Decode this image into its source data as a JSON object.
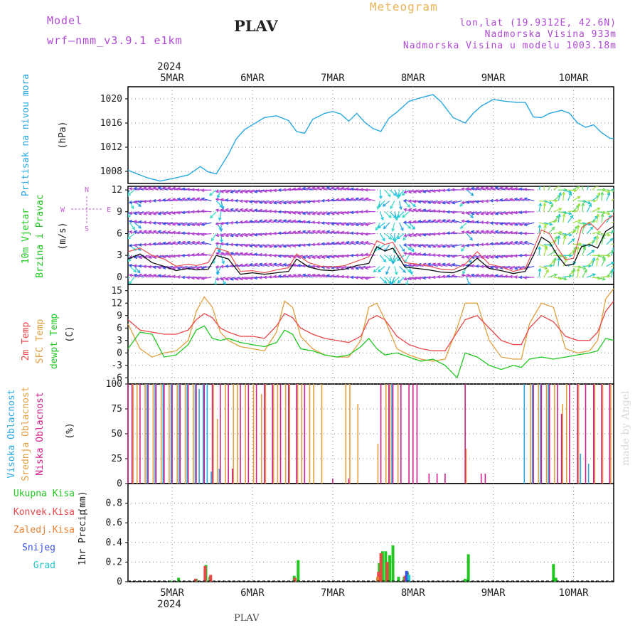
{
  "header": {
    "model_label": "Model",
    "model_name": "wrf–nmm_v3.9.1  e1km",
    "station": "PLAV",
    "meteogram_label": "Meteogram",
    "coords": "lon,lat (19.9312E, 42.6N)",
    "elevation": "Nadmorska Visina 933m",
    "model_elevation": "Nadmorska Visina u modelu 1003.18m",
    "credit": "made by Angel",
    "footer_station": "PLAV"
  },
  "time_axis": {
    "year": "2024",
    "days": [
      "5MAR",
      "6MAR",
      "7MAR",
      "8MAR",
      "9MAR",
      "10MAR"
    ],
    "start": 4.45,
    "end": 10.5
  },
  "colors": {
    "pressure": "#2aa8e0",
    "wind_speed": "#111111",
    "wind_gust": "#e85050",
    "t2m": "#e84848",
    "sfc": "#e0a040",
    "dewpt": "#22c822",
    "cloud_high": "#2aa8e0",
    "cloud_mid": "#e0a040",
    "cloud_low": "#d0208a",
    "precip_total": "#22c822",
    "precip_conv": "#e84848",
    "precip_frozen": "#e88030",
    "precip_snow": "#3a50e0",
    "precip_grad": "#20c8c8",
    "wind_label": "#22c822",
    "compass": "#c060d0"
  },
  "chart_data": [
    {
      "type": "line",
      "panel": "pressure",
      "ylabel": "Pritisak na nivou mora",
      "unit": "(hPa)",
      "ylim": [
        1006,
        1022
      ],
      "yticks": [
        1008,
        1012,
        1016,
        1020
      ],
      "grid": true,
      "series": [
        {
          "name": "Pritisak na nivou mora",
          "x": [
            4.45,
            4.6,
            4.7,
            4.85,
            5.0,
            5.2,
            5.35,
            5.45,
            5.55,
            5.7,
            5.8,
            5.9,
            6.0,
            6.15,
            6.3,
            6.45,
            6.55,
            6.65,
            6.75,
            6.9,
            7.0,
            7.1,
            7.2,
            7.3,
            7.4,
            7.5,
            7.6,
            7.7,
            7.8,
            7.95,
            8.1,
            8.25,
            8.35,
            8.5,
            8.65,
            8.75,
            8.85,
            9.0,
            9.15,
            9.3,
            9.4,
            9.5,
            9.6,
            9.7,
            9.85,
            9.95,
            10.05,
            10.15,
            10.25,
            10.35,
            10.45,
            10.5
          ],
          "values": [
            1008.2,
            1007.4,
            1006.9,
            1006.4,
            1006.8,
            1007.4,
            1008.8,
            1007.9,
            1007.6,
            1010.8,
            1013.4,
            1014.9,
            1015.7,
            1016.9,
            1017.2,
            1016.4,
            1014.6,
            1014.3,
            1016.6,
            1017.6,
            1017.9,
            1017.5,
            1016.3,
            1017.6,
            1016.1,
            1015.1,
            1014.6,
            1016.8,
            1017.8,
            1019.6,
            1020.2,
            1020.7,
            1019.5,
            1016.9,
            1016.0,
            1017.6,
            1018.8,
            1019.9,
            1019.6,
            1019.4,
            1019.4,
            1017.0,
            1016.9,
            1017.6,
            1018.1,
            1017.6,
            1016.0,
            1015.3,
            1015.7,
            1014.4,
            1013.5,
            1013.4
          ]
        }
      ]
    },
    {
      "type": "line",
      "panel": "wind",
      "ylabel": "10m Vjetar",
      "ylabel2": "Brzina i Pravac",
      "unit": "(m/s)",
      "compass": [
        "N",
        "E",
        "S",
        "W"
      ],
      "ylim": [
        -1,
        12.5
      ],
      "yticks": [
        0,
        3,
        6,
        9,
        12
      ],
      "grid": true,
      "series": [
        {
          "x": [
            4.45,
            4.6,
            4.75,
            4.9,
            5.05,
            5.2,
            5.3,
            5.45,
            5.55,
            5.7,
            5.85,
            6.0,
            6.15,
            6.3,
            6.45,
            6.55,
            6.7,
            6.85,
            7.0,
            7.15,
            7.3,
            7.45,
            7.55,
            7.65,
            7.75,
            7.9,
            8.05,
            8.2,
            8.35,
            8.5,
            8.65,
            8.8,
            8.95,
            9.1,
            9.25,
            9.4,
            9.5,
            9.6,
            9.7,
            9.8,
            9.9,
            10.0,
            10.1,
            10.2,
            10.3,
            10.4,
            10.5
          ],
          "values": [
            2.5,
            3.2,
            2.0,
            1.5,
            0.9,
            1.2,
            1.0,
            1.1,
            3.0,
            2.5,
            0.4,
            0.6,
            0.4,
            0.6,
            0.8,
            2.5,
            1.4,
            1.0,
            0.9,
            1.1,
            1.6,
            1.9,
            4.2,
            3.6,
            4.0,
            1.4,
            1.2,
            1.0,
            0.7,
            0.6,
            1.2,
            2.6,
            1.2,
            0.9,
            0.5,
            0.8,
            3.0,
            5.5,
            4.8,
            3.0,
            1.6,
            1.8,
            4.2,
            4.5,
            4.0,
            6.3,
            7.0
          ]
        },
        {
          "x": [
            4.45,
            4.6,
            4.75,
            4.9,
            5.05,
            5.2,
            5.3,
            5.45,
            5.55,
            5.7,
            5.85,
            6.0,
            6.15,
            6.3,
            6.45,
            6.55,
            6.7,
            6.85,
            7.0,
            7.15,
            7.3,
            7.45,
            7.55,
            7.65,
            7.75,
            7.9,
            8.05,
            8.2,
            8.35,
            8.5,
            8.65,
            8.8,
            8.95,
            9.1,
            9.25,
            9.4,
            9.5,
            9.6,
            9.7,
            9.8,
            9.9,
            10.0,
            10.1,
            10.2,
            10.3,
            10.4,
            10.5
          ],
          "values": [
            3.5,
            4.0,
            3.0,
            2.5,
            1.5,
            1.8,
            1.6,
            2.0,
            4.0,
            3.5,
            0.8,
            0.9,
            0.6,
            1.0,
            1.3,
            3.2,
            2.0,
            1.5,
            1.4,
            1.6,
            2.2,
            2.8,
            5.0,
            4.5,
            4.8,
            2.0,
            1.8,
            1.5,
            1.1,
            1.0,
            1.8,
            3.5,
            1.8,
            1.4,
            0.8,
            1.2,
            3.8,
            6.5,
            6.0,
            4.0,
            2.4,
            2.6,
            6.8,
            7.5,
            6.5,
            7.8,
            8.5
          ]
        }
      ]
    },
    {
      "type": "line",
      "panel": "temperature",
      "ylabel": "2m Temp",
      "ylabel2": "SFC Temp",
      "ylabel3": "dewpt Temp",
      "unit": "(C)",
      "ylim": [
        -7.5,
        16.5
      ],
      "yticks": [
        -6,
        -3,
        0,
        3,
        6,
        9,
        12,
        15
      ],
      "grid": true,
      "series": [
        {
          "name": "2m Temp",
          "x": [
            4.45,
            4.6,
            4.75,
            4.9,
            5.05,
            5.2,
            5.3,
            5.4,
            5.5,
            5.6,
            5.7,
            5.85,
            6.0,
            6.15,
            6.3,
            6.4,
            6.5,
            6.6,
            6.75,
            6.9,
            7.05,
            7.2,
            7.35,
            7.45,
            7.55,
            7.65,
            7.8,
            7.95,
            8.1,
            8.25,
            8.4,
            8.55,
            8.65,
            8.8,
            8.95,
            9.1,
            9.25,
            9.35,
            9.45,
            9.6,
            9.75,
            9.9,
            10.05,
            10.2,
            10.3,
            10.4,
            10.5
          ],
          "values": [
            8.0,
            5.5,
            5.0,
            4.5,
            4.5,
            5.5,
            8.0,
            9.5,
            8.5,
            6.0,
            5.0,
            4.0,
            4.0,
            3.5,
            6.5,
            9.5,
            8.5,
            6.0,
            4.5,
            3.5,
            3.0,
            2.5,
            4.0,
            8.0,
            9.0,
            8.0,
            4.0,
            2.0,
            1.0,
            0.5,
            0.5,
            5.0,
            8.0,
            9.0,
            6.0,
            3.0,
            2.0,
            2.0,
            6.0,
            9.0,
            7.5,
            4.0,
            3.0,
            3.0,
            5.0,
            10.0,
            12.5
          ]
        },
        {
          "name": "SFC Temp",
          "x": [
            4.45,
            4.6,
            4.75,
            4.9,
            5.05,
            5.2,
            5.3,
            5.4,
            5.5,
            5.6,
            5.7,
            5.85,
            6.0,
            6.15,
            6.3,
            6.4,
            6.5,
            6.6,
            6.75,
            6.9,
            7.05,
            7.2,
            7.35,
            7.45,
            7.55,
            7.65,
            7.8,
            7.95,
            8.1,
            8.25,
            8.4,
            8.55,
            8.65,
            8.8,
            8.95,
            9.1,
            9.25,
            9.35,
            9.45,
            9.6,
            9.75,
            9.9,
            10.05,
            10.2,
            10.3,
            10.4,
            10.5
          ],
          "values": [
            7.0,
            1.0,
            -1.0,
            0.0,
            0.5,
            3.0,
            10.0,
            13.5,
            11.0,
            5.0,
            3.0,
            1.5,
            1.0,
            0.5,
            5.0,
            12.5,
            11.0,
            4.0,
            1.0,
            -0.5,
            -1.0,
            -1.0,
            3.0,
            11.0,
            12.0,
            8.0,
            1.0,
            -0.5,
            -1.5,
            -2.0,
            -1.5,
            6.0,
            12.0,
            12.0,
            3.0,
            -1.0,
            -1.5,
            -1.5,
            7.0,
            12.0,
            11.0,
            1.0,
            0.0,
            0.5,
            3.0,
            13.0,
            15.5
          ]
        },
        {
          "name": "dewpt Temp",
          "x": [
            4.45,
            4.6,
            4.75,
            4.9,
            5.05,
            5.2,
            5.3,
            5.4,
            5.5,
            5.6,
            5.7,
            5.85,
            6.0,
            6.15,
            6.3,
            6.4,
            6.5,
            6.6,
            6.75,
            6.9,
            7.05,
            7.2,
            7.35,
            7.45,
            7.55,
            7.65,
            7.8,
            7.95,
            8.1,
            8.25,
            8.4,
            8.55,
            8.65,
            8.8,
            8.95,
            9.1,
            9.25,
            9.35,
            9.45,
            9.6,
            9.75,
            9.9,
            10.05,
            10.2,
            10.3,
            10.4,
            10.5
          ],
          "values": [
            1.0,
            5.0,
            4.5,
            -1.0,
            -0.5,
            2.0,
            5.5,
            6.5,
            3.5,
            3.0,
            3.5,
            2.5,
            2.0,
            1.5,
            2.5,
            5.5,
            4.5,
            1.0,
            0.5,
            -0.5,
            -1.0,
            -0.5,
            1.5,
            3.5,
            1.0,
            -0.5,
            0.0,
            -1.0,
            -2.0,
            -1.5,
            -3.0,
            -6.0,
            0.0,
            -1.0,
            -3.0,
            -4.0,
            -3.0,
            -3.5,
            -1.5,
            -1.0,
            -1.5,
            -1.0,
            -0.5,
            0.0,
            0.5,
            3.5,
            3.0
          ]
        }
      ]
    },
    {
      "type": "bar",
      "panel": "clouds",
      "ylabel": "Visoka Oblacnost",
      "ylabel2": "Srednja Oblacnost",
      "ylabel3": "Niska Oblacnost",
      "unit": "(%)",
      "ylim": [
        0,
        100
      ],
      "yticks": [
        0,
        25,
        50,
        75,
        100
      ],
      "grid": true,
      "series": [
        {
          "name": "Visoka Oblacnost",
          "x": [
            4.7,
            4.8,
            4.9,
            5.0,
            5.1,
            5.2,
            5.3,
            5.35,
            5.4,
            5.45,
            5.5,
            5.6,
            7.75,
            9.4,
            9.5,
            9.6,
            9.7,
            10.1,
            10.2
          ],
          "values": [
            100,
            100,
            100,
            100,
            100,
            100,
            100,
            95,
            100,
            100,
            12,
            15,
            100,
            100,
            100,
            100,
            100,
            30,
            20
          ]
        },
        {
          "name": "Srednja Oblacnost",
          "x": [
            4.5,
            4.55,
            4.65,
            4.75,
            4.85,
            4.95,
            5.05,
            5.15,
            5.25,
            5.5,
            5.55,
            5.65,
            5.75,
            5.8,
            5.9,
            6.0,
            6.1,
            6.15,
            6.25,
            6.3,
            6.4,
            6.45,
            6.55,
            6.6,
            6.7,
            6.75,
            6.85,
            7.15,
            7.2,
            7.3,
            7.55,
            7.65,
            7.7,
            7.8,
            8.65,
            9.45,
            9.55,
            9.65,
            9.75,
            9.85,
            9.9,
            10.05,
            10.25,
            10.35,
            10.45
          ],
          "values": [
            100,
            100,
            100,
            100,
            100,
            100,
            100,
            100,
            100,
            100,
            65,
            100,
            100,
            100,
            100,
            100,
            90,
            100,
            100,
            100,
            100,
            100,
            100,
            100,
            100,
            100,
            100,
            100,
            100,
            80,
            40,
            100,
            100,
            100,
            35,
            100,
            100,
            100,
            100,
            80,
            100,
            100,
            100,
            100,
            100
          ]
        },
        {
          "name": "Niska Oblacnost",
          "x": [
            4.45,
            4.5,
            4.6,
            4.7,
            4.8,
            4.9,
            5.0,
            5.1,
            5.2,
            5.3,
            5.4,
            5.5,
            5.6,
            5.7,
            5.75,
            5.85,
            5.95,
            6.05,
            6.15,
            6.25,
            6.35,
            6.45,
            6.55,
            6.65,
            7.0,
            7.2,
            7.6,
            7.7,
            7.75,
            7.85,
            7.95,
            8.0,
            8.05,
            8.2,
            8.3,
            8.4,
            8.65,
            8.85,
            8.9,
            9.5,
            9.6,
            9.7,
            9.8,
            9.85,
            9.95,
            10.05,
            10.15,
            10.25,
            10.35,
            10.45
          ],
          "values": [
            100,
            100,
            100,
            100,
            100,
            100,
            100,
            100,
            100,
            100,
            100,
            100,
            100,
            100,
            15,
            100,
            100,
            100,
            100,
            100,
            100,
            100,
            100,
            100,
            5,
            5,
            100,
            100,
            100,
            100,
            100,
            100,
            100,
            10,
            10,
            10,
            100,
            10,
            10,
            100,
            100,
            100,
            100,
            70,
            100,
            100,
            100,
            100,
            100,
            100
          ]
        }
      ]
    },
    {
      "type": "bar",
      "panel": "precip",
      "ylabel": "1hr Precip",
      "unit": "(mm)",
      "legend": [
        "Ukupna Kisa",
        "Konvek.Kisa",
        "Zaledj.Kisa",
        "Snijeg",
        "Grad"
      ],
      "ylim": [
        0,
        1.0
      ],
      "yticks": [
        0,
        0.2,
        0.4,
        0.6,
        0.8
      ],
      "grid": true,
      "series": [
        {
          "name": "Ukupna Kisa",
          "x": [
            4.98,
            5.08,
            5.3,
            5.42,
            5.47,
            6.52,
            6.57,
            7.58,
            7.62,
            7.66,
            7.71,
            7.75,
            7.82,
            7.89,
            7.93,
            8.65,
            8.69,
            9.75,
            9.78
          ],
          "values": [
            0.01,
            0.04,
            0.03,
            0.17,
            0.05,
            0.06,
            0.22,
            0.19,
            0.31,
            0.31,
            0.27,
            0.37,
            0.05,
            0.05,
            0.1,
            0.03,
            0.28,
            0.18,
            0.04
          ]
        },
        {
          "name": "Konvek.Kisa",
          "x": [
            5.29,
            5.41,
            5.48,
            6.53,
            7.57,
            7.6,
            7.68,
            7.9
          ],
          "values": [
            0.03,
            0.16,
            0.07,
            0.04,
            0.1,
            0.29,
            0.2,
            0.06
          ]
        },
        {
          "name": "Zaledj.Kisa",
          "x": [
            7.56
          ],
          "values": [
            0.05
          ]
        },
        {
          "name": "Snijeg",
          "x": [
            7.92
          ],
          "values": [
            0.11
          ]
        },
        {
          "name": "Grad",
          "x": [
            7.95
          ],
          "values": [
            0.07
          ]
        }
      ]
    }
  ]
}
